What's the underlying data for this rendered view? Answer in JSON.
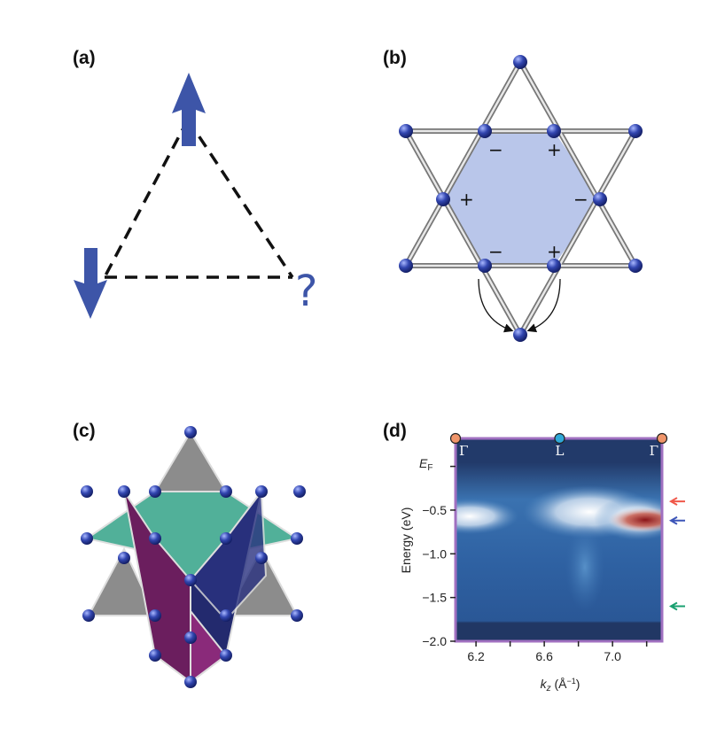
{
  "panels": {
    "a": {
      "label": "(a)",
      "question": "?",
      "colors": {
        "arrow": "#3d55a8",
        "edges": "#111111"
      }
    },
    "b": {
      "label": "(b)",
      "signs": [
        "−",
        "+",
        "+",
        "−",
        "−",
        "+"
      ],
      "colors": {
        "hexagon": "#b9c6ea",
        "sites": "#2f44a8"
      }
    },
    "c": {
      "label": "(c)",
      "colors": {
        "teal": "#3fa88e",
        "purple": "#6b1e5e",
        "navy": "#232a6e",
        "grey": "#8c8c8c"
      }
    },
    "d": {
      "label": "(d)"
    }
  },
  "chart_data": {
    "type": "heatmap",
    "xlabel": "k",
    "xlabel_sub": "z",
    "xlabel_unit": " (Å",
    "xlabel_unit_sup": "−1",
    "xlabel_close": ")",
    "ylabel": "Energy (eV)",
    "xlim": [
      6.08,
      7.29
    ],
    "ylim": [
      -2.0,
      0.32
    ],
    "xticks": [
      6.2,
      6.6,
      7.0
    ],
    "xtick_labels": [
      "6.2",
      "6.6",
      "7.0"
    ],
    "yticks": [
      0,
      -0.5,
      -1.0,
      -1.5,
      -2.0
    ],
    "ytick_labels": [
      "E",
      "−0.5",
      "−1.0",
      "−1.5",
      "−2.0"
    ],
    "ytick_ef_sub": "F",
    "high_symmetry_points": [
      {
        "label": "Γ",
        "k": 6.08,
        "color": "#f0956a"
      },
      {
        "label": "L",
        "k": 6.69,
        "color": "#2fa8d8"
      },
      {
        "label": "Γ",
        "k": 7.29,
        "color": "#f0956a"
      }
    ],
    "arrow_markers": [
      {
        "energy": -0.4,
        "color": "#f0584a"
      },
      {
        "energy": -0.62,
        "color": "#3d55b8"
      },
      {
        "energy": -1.6,
        "color": "#1aa070"
      }
    ],
    "colormap": [
      "#1f3563",
      "#3f79b8",
      "#ffffff",
      "#9a1e22"
    ],
    "frame_color": "#a070c0",
    "grid": false
  }
}
